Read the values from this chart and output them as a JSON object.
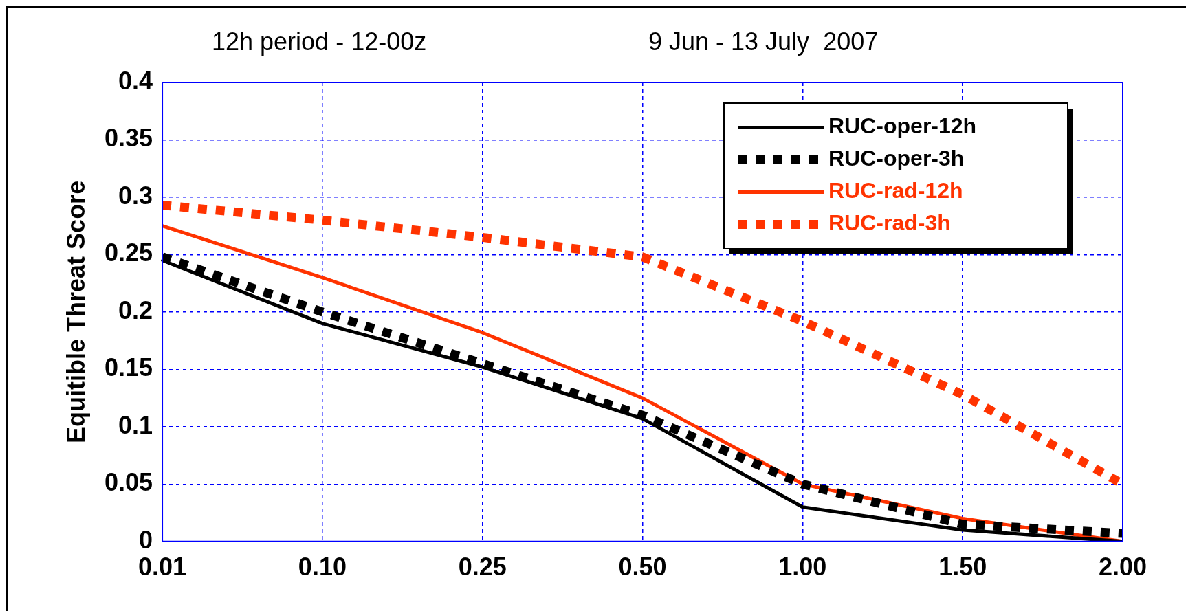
{
  "chart_data": {
    "type": "line",
    "title": "12h period - 12-00z",
    "subtitle": "9 Jun - 13 July  2007",
    "ylabel": "Equitible Threat Score",
    "categories": [
      "0.01",
      "0.10",
      "0.25",
      "0.50",
      "1.00",
      "1.50",
      "2.00"
    ],
    "series": [
      {
        "name": "RUC-oper-12h",
        "color": "#000000",
        "line_style": "solid",
        "values": [
          0.245,
          0.19,
          0.152,
          0.107,
          0.03,
          0.01,
          0
        ]
      },
      {
        "name": "RUC-oper-3h",
        "color": "#000000",
        "line_style": "dotted",
        "values": [
          0.248,
          0.2,
          0.155,
          0.11,
          0.05,
          0.015,
          0.007
        ]
      },
      {
        "name": "RUC-rad-12h",
        "color": "#ff3300",
        "line_style": "solid",
        "values": [
          0.275,
          0.23,
          0.182,
          0.125,
          0.05,
          0.02,
          0
        ]
      },
      {
        "name": "RUC-rad-3h",
        "color": "#ff3300",
        "line_style": "dotted",
        "values": [
          0.293,
          0.28,
          0.265,
          0.248,
          0.192,
          0.128,
          0.05
        ]
      }
    ],
    "ylim": [
      0,
      0.4
    ],
    "yticks": [
      0,
      0.05,
      0.1,
      0.15,
      0.2,
      0.25,
      0.3,
      0.35,
      0.4
    ],
    "grid": true,
    "legend": "top right",
    "marker": "none"
  }
}
